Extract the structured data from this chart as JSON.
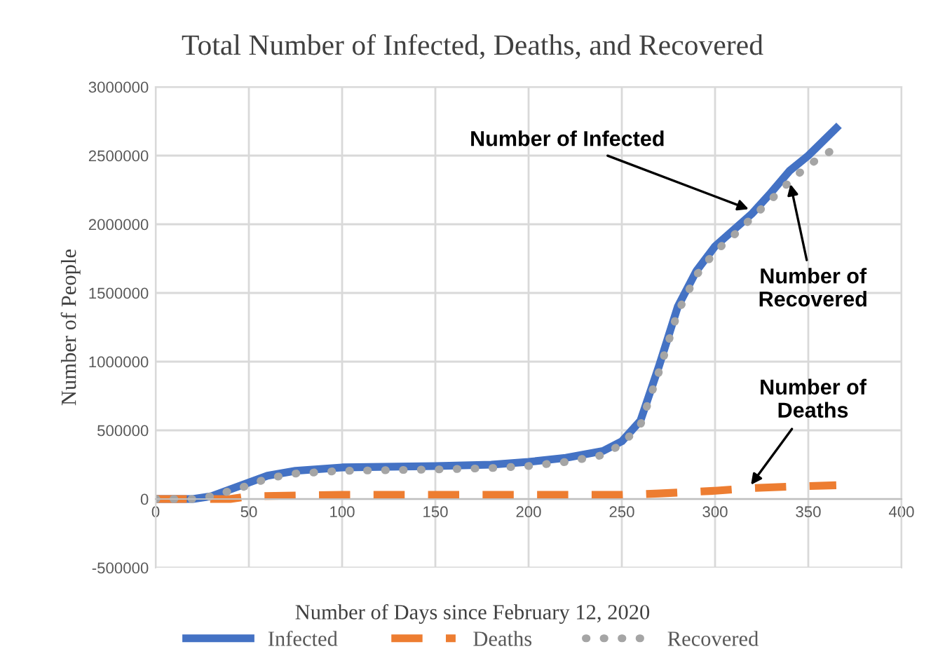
{
  "chart_data": {
    "type": "line",
    "title": "Total Number of Infected, Deaths, and Recovered",
    "xlabel": "Number of Days since February 12, 2020",
    "ylabel": "Number of People",
    "xlim": [
      0,
      400
    ],
    "xticks": [
      0,
      50,
      100,
      150,
      200,
      250,
      300,
      350,
      400
    ],
    "ylim": [
      -500000,
      3000000
    ],
    "yticks": [
      -500000,
      0,
      500000,
      1000000,
      1500000,
      2000000,
      2500000,
      3000000
    ],
    "grid": true,
    "legend": "bottom",
    "series": [
      {
        "name": "Infected",
        "color": "#4472c4",
        "line_style": "solid",
        "x": [
          0,
          20,
          30,
          40,
          50,
          60,
          75,
          100,
          150,
          180,
          200,
          220,
          240,
          250,
          260,
          270,
          280,
          290,
          300,
          310,
          320,
          330,
          340,
          350,
          365
        ],
        "values": [
          0,
          0,
          20000,
          70000,
          120000,
          170000,
          205000,
          230000,
          240000,
          250000,
          270000,
          300000,
          350000,
          420000,
          570000,
          970000,
          1400000,
          1660000,
          1840000,
          1960000,
          2080000,
          2230000,
          2390000,
          2500000,
          2700000
        ]
      },
      {
        "name": "Deaths",
        "color": "#ed7d31",
        "line_style": "dashed",
        "x": [
          0,
          40,
          50,
          100,
          150,
          200,
          250,
          270,
          300,
          320,
          340,
          365
        ],
        "values": [
          0,
          0,
          20000,
          30000,
          30000,
          30000,
          30000,
          40000,
          60000,
          80000,
          90000,
          100000
        ]
      },
      {
        "name": "Recovered",
        "color": "#a5a5a5",
        "line_style": "dotted",
        "x": [
          0,
          20,
          30,
          40,
          50,
          60,
          75,
          100,
          150,
          180,
          200,
          220,
          240,
          250,
          260,
          270,
          280,
          290,
          300,
          310,
          320,
          330,
          340,
          350,
          364
        ],
        "values": [
          0,
          0,
          20000,
          60000,
          100000,
          150000,
          185000,
          205000,
          215000,
          225000,
          240000,
          270000,
          320000,
          400000,
          540000,
          930000,
          1360000,
          1630000,
          1800000,
          1920000,
          2050000,
          2180000,
          2310000,
          2430000,
          2550000
        ]
      }
    ],
    "annotations": [
      {
        "text": "Number of Infected",
        "x": 320,
        "y": 2100000
      },
      {
        "text": "Number of\nRecovered",
        "x": 340,
        "y": 2320000
      },
      {
        "text": "Number of\nDeaths",
        "x": 318,
        "y": 80000
      }
    ]
  }
}
